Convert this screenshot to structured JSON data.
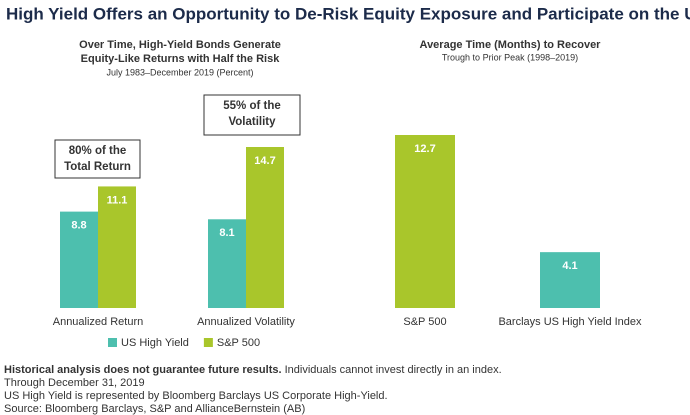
{
  "title": "High Yield Offers an Opportunity to De-Risk Equity Exposure and Participate on the Upside",
  "chart_data": [
    {
      "type": "bar",
      "title": [
        "Over Time, High-Yield Bonds Generate",
        "Equity-Like Returns with Half the Risk"
      ],
      "subtitle": "July 1983–December 2019 (Percent)",
      "categories": [
        "Annualized Return",
        "Annualized Volatility"
      ],
      "series": [
        {
          "name": "US High Yield",
          "color": "#4dbfae",
          "values": [
            8.8,
            8.1
          ]
        },
        {
          "name": "S&P 500",
          "color": "#a9c62b",
          "values": [
            11.1,
            14.7
          ]
        }
      ],
      "annotations": [
        [
          "80% of the",
          "Total Return"
        ],
        [
          "55% of the",
          "Volatility"
        ]
      ]
    },
    {
      "type": "bar",
      "title": [
        "Average Time (Months) to Recover"
      ],
      "subtitle": "Trough to Prior Peak (1998–2019)",
      "categories": [
        "S&P 500",
        "Barclays US High Yield Index"
      ],
      "values": [
        12.7,
        4.1
      ],
      "colors": [
        "#a9c62b",
        "#4dbfae"
      ]
    }
  ],
  "footnotes": {
    "bold": "Historical analysis does not guarantee future results.",
    "lines": [
      "Individuals cannot invest directly in an index.",
      "Through December 31, 2019",
      "US High Yield is represented by Bloomberg Barclays US Corporate High-Yield.",
      "Source: Bloomberg Barclays, S&P and AllianceBernstein (AB)"
    ]
  }
}
